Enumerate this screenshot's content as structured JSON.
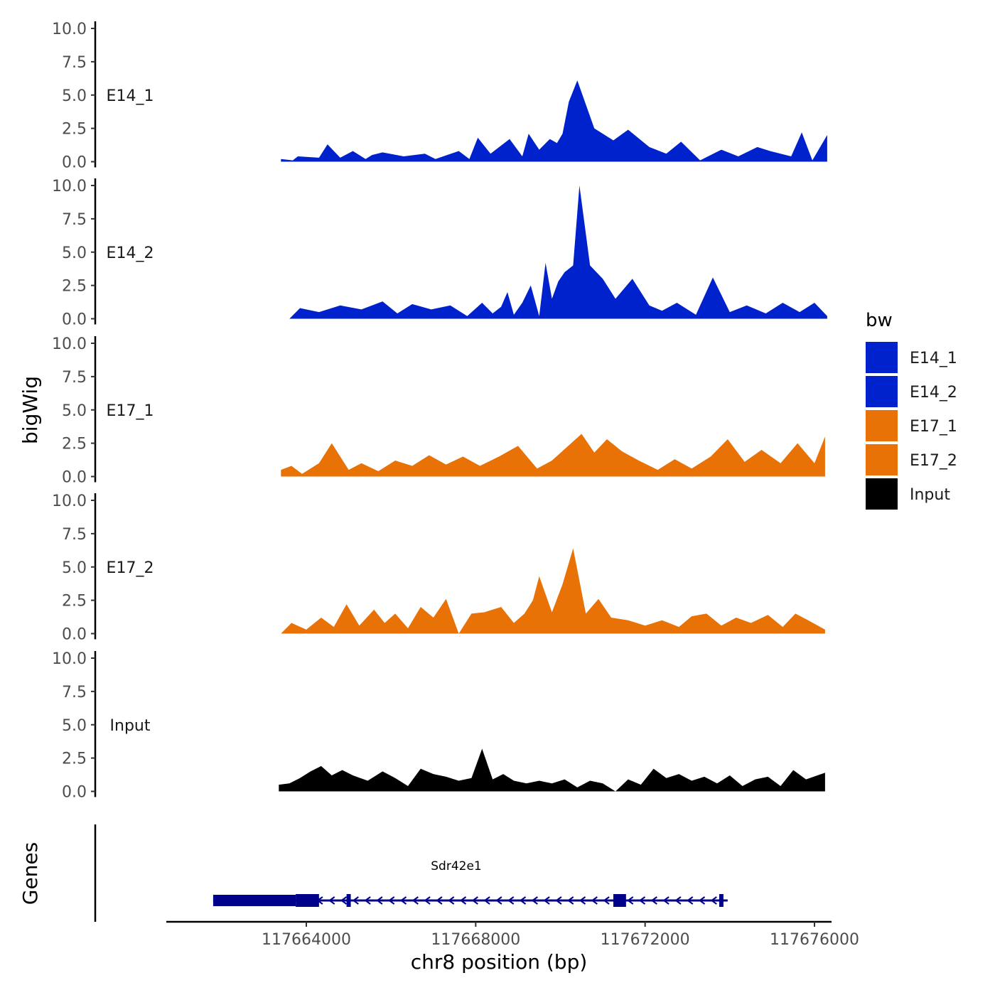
{
  "chart_data": {
    "type": "area",
    "ylabel": "bigWig",
    "xlabel": "chr8 position (bp)",
    "ylim": [
      0,
      10
    ],
    "xlim": [
      117661000,
      117676500
    ],
    "yticks": [
      "0.0",
      "2.5",
      "5.0",
      "7.5",
      "10.0"
    ],
    "xticks": [
      {
        "value": 117664000,
        "label": "117664000"
      },
      {
        "value": 117668000,
        "label": "117668000"
      },
      {
        "value": 117672000,
        "label": "117672000"
      },
      {
        "value": 117676000,
        "label": "117676000"
      }
    ],
    "colors": {
      "E14_1": "#0022cc",
      "E14_2": "#0022cc",
      "E17_1": "#e87206",
      "E17_2": "#e87206",
      "Input": "#000000",
      "gene": "#00008b"
    },
    "tracks": [
      {
        "name": "E14_1",
        "x": [
          117663400,
          117663680,
          117663800,
          117664300,
          117664500,
          117664800,
          117665100,
          117665400,
          117665550,
          117665800,
          117666300,
          117666800,
          117667050,
          117667600,
          117667850,
          117668050,
          117668350,
          117668800,
          117669100,
          117669250,
          117669500,
          117669750,
          117669920,
          117670050,
          117670200,
          117670400,
          117670800,
          117671250,
          117671600,
          117672100,
          117672500,
          117672850,
          117673300,
          117673800,
          117674200,
          117674650,
          117674950,
          117675450,
          117675700,
          117675950,
          117676300
        ],
        "y": [
          0.2,
          0.1,
          0.4,
          0.3,
          1.3,
          0.3,
          0.8,
          0.2,
          0.5,
          0.7,
          0.4,
          0.6,
          0.2,
          0.8,
          0.2,
          1.8,
          0.6,
          1.7,
          0.4,
          2.1,
          0.9,
          1.7,
          1.4,
          2.1,
          4.5,
          6.1,
          2.5,
          1.6,
          2.4,
          1.1,
          0.6,
          1.5,
          0.1,
          0.9,
          0.4,
          1.1,
          0.8,
          0.4,
          2.2,
          0.1,
          2.0
        ]
      },
      {
        "name": "E14_2",
        "x": [
          117663600,
          117663850,
          117664300,
          117664800,
          117665300,
          117665800,
          117666150,
          117666500,
          117666950,
          117667400,
          117667800,
          117668150,
          117668400,
          117668600,
          117668750,
          117668900,
          117669100,
          117669300,
          117669500,
          117669650,
          117669800,
          117669950,
          117670100,
          117670300,
          117670450,
          117670700,
          117671000,
          117671300,
          117671700,
          117672100,
          117672400,
          117672750,
          117673200,
          117673600,
          117674000,
          117674400,
          117674850,
          117675250,
          117675650,
          117676000,
          117676300
        ],
        "y": [
          0.0,
          0.8,
          0.5,
          1.0,
          0.7,
          1.3,
          0.4,
          1.1,
          0.7,
          1.0,
          0.2,
          1.2,
          0.4,
          0.9,
          2.0,
          0.3,
          1.2,
          2.5,
          0.2,
          4.2,
          1.5,
          2.8,
          3.5,
          4.0,
          10.0,
          4.0,
          3.0,
          1.5,
          3.0,
          1.0,
          0.6,
          1.2,
          0.3,
          3.1,
          0.5,
          1.0,
          0.4,
          1.2,
          0.5,
          1.2,
          0.2
        ]
      },
      {
        "name": "E17_1",
        "x": [
          117663400,
          117663650,
          117663900,
          117664300,
          117664600,
          117665000,
          117665300,
          117665700,
          117666100,
          117666500,
          117666900,
          117667300,
          117667700,
          117668100,
          117668550,
          117669000,
          117669450,
          117669800,
          117670150,
          117670500,
          117670800,
          117671100,
          117671450,
          117671850,
          117672300,
          117672700,
          117673100,
          117673550,
          117673950,
          117674350,
          117674750,
          117675200,
          117675600,
          117676000,
          117676250
        ],
        "y": [
          0.5,
          0.8,
          0.2,
          1.0,
          2.5,
          0.5,
          1.0,
          0.4,
          1.2,
          0.8,
          1.6,
          0.9,
          1.5,
          0.8,
          1.5,
          2.3,
          0.6,
          1.2,
          2.2,
          3.2,
          1.8,
          2.8,
          1.9,
          1.2,
          0.5,
          1.3,
          0.6,
          1.5,
          2.8,
          1.1,
          2.0,
          1.0,
          2.5,
          1.0,
          3.0
        ]
      },
      {
        "name": "E17_2",
        "x": [
          117663400,
          117663650,
          117664000,
          117664350,
          117664650,
          117664950,
          117665250,
          117665600,
          117665850,
          117666100,
          117666400,
          117666700,
          117667000,
          117667300,
          117667600,
          117667900,
          117668200,
          117668600,
          117668900,
          117669150,
          117669350,
          117669500,
          117669800,
          117670050,
          117670300,
          117670600,
          117670900,
          117671200,
          117671600,
          117672000,
          117672400,
          117672800,
          117673100,
          117673450,
          117673800,
          117674150,
          117674500,
          117674900,
          117675250,
          117675550,
          117675850,
          117676250
        ],
        "y": [
          0.0,
          0.8,
          0.3,
          1.2,
          0.5,
          2.2,
          0.6,
          1.8,
          0.8,
          1.5,
          0.4,
          2.0,
          1.2,
          2.6,
          0.0,
          1.5,
          1.6,
          2.0,
          0.8,
          1.5,
          2.5,
          4.3,
          1.6,
          3.7,
          6.4,
          1.5,
          2.6,
          1.2,
          1.0,
          0.6,
          1.0,
          0.5,
          1.3,
          1.5,
          0.6,
          1.2,
          0.8,
          1.4,
          0.5,
          1.5,
          1.0,
          0.3
        ]
      },
      {
        "name": "Input",
        "x": [
          117663350,
          117663600,
          117663850,
          117664100,
          117664350,
          117664600,
          117664850,
          117665100,
          117665450,
          117665800,
          117666100,
          117666400,
          117666700,
          117667000,
          117667300,
          117667600,
          117667900,
          117668150,
          117668400,
          117668650,
          117668900,
          117669200,
          117669500,
          117669800,
          117670100,
          117670400,
          117670700,
          117671000,
          117671300,
          117671600,
          117671900,
          117672200,
          117672500,
          117672800,
          117673100,
          117673400,
          117673700,
          117674000,
          117674300,
          117674600,
          117674900,
          117675200,
          117675500,
          117675800,
          117676250
        ],
        "y": [
          0.5,
          0.6,
          1.0,
          1.5,
          1.9,
          1.2,
          1.6,
          1.2,
          0.8,
          1.5,
          1.0,
          0.4,
          1.7,
          1.3,
          1.1,
          0.8,
          1.0,
          3.2,
          0.9,
          1.3,
          0.8,
          0.6,
          0.8,
          0.6,
          0.9,
          0.3,
          0.8,
          0.6,
          0.0,
          0.9,
          0.5,
          1.7,
          1.0,
          1.3,
          0.8,
          1.1,
          0.6,
          1.2,
          0.4,
          0.9,
          1.1,
          0.4,
          1.6,
          0.9,
          1.4
        ]
      }
    ],
    "legend": {
      "title": "bw",
      "items": [
        {
          "label": "E14_1",
          "color": "#0022cc"
        },
        {
          "label": "E14_2",
          "color": "#0022cc"
        },
        {
          "label": "E17_1",
          "color": "#e87206"
        },
        {
          "label": "E17_2",
          "color": "#e87206"
        },
        {
          "label": "Input",
          "color": "#000000"
        }
      ]
    },
    "genes": {
      "title": "Genes",
      "gene_name": "Sdr42e1",
      "start": 117661800,
      "end": 117673950,
      "strand": "-",
      "exons": [
        {
          "start": 117661800,
          "end": 117663750,
          "kind": "utr"
        },
        {
          "start": 117663750,
          "end": 117664300,
          "kind": "cds"
        },
        {
          "start": 117664950,
          "end": 117665050,
          "kind": "cds"
        },
        {
          "start": 117671250,
          "end": 117671550,
          "kind": "cds"
        },
        {
          "start": 117673750,
          "end": 117673850,
          "kind": "cds"
        }
      ]
    }
  }
}
